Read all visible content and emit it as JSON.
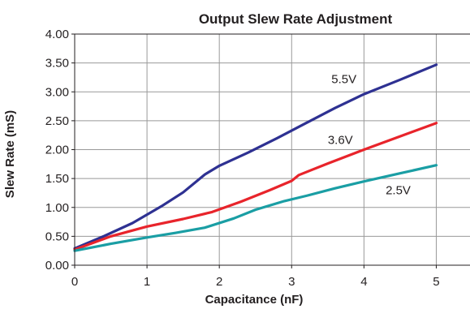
{
  "chart_data": {
    "type": "line",
    "title": "Output Slew Rate Adjustment",
    "xlabel": "Capacitance (nF)",
    "ylabel": "Slew Rate (mS)",
    "xlim": [
      0,
      5.5
    ],
    "ylim": [
      0,
      4
    ],
    "x_ticks": [
      "0",
      "1",
      "2",
      "3",
      "4",
      "5"
    ],
    "y_ticks": [
      "0.00",
      "0.50",
      "1.00",
      "1.50",
      "2.00",
      "2.50",
      "3.00",
      "3.50",
      "4.00"
    ],
    "grid": true,
    "series": [
      {
        "name": "5.5V",
        "color": "#2e3192",
        "label_at": [
          3.55,
          3.15
        ],
        "points": [
          [
            0,
            0.29
          ],
          [
            0.4,
            0.5
          ],
          [
            0.8,
            0.73
          ],
          [
            1.2,
            1.02
          ],
          [
            1.5,
            1.26
          ],
          [
            1.8,
            1.57
          ],
          [
            2.0,
            1.72
          ],
          [
            2.4,
            1.95
          ],
          [
            2.8,
            2.2
          ],
          [
            3.2,
            2.46
          ],
          [
            3.6,
            2.72
          ],
          [
            4.0,
            2.96
          ],
          [
            4.5,
            3.21
          ],
          [
            5.0,
            3.47
          ]
        ]
      },
      {
        "name": "3.6V",
        "color": "#e8242b",
        "label_at": [
          3.5,
          2.1
        ],
        "points": [
          [
            0,
            0.27
          ],
          [
            0.5,
            0.5
          ],
          [
            1.0,
            0.67
          ],
          [
            1.5,
            0.8
          ],
          [
            1.9,
            0.92
          ],
          [
            2.3,
            1.1
          ],
          [
            2.7,
            1.3
          ],
          [
            3.0,
            1.46
          ],
          [
            3.1,
            1.56
          ],
          [
            3.5,
            1.76
          ],
          [
            4.0,
            2.0
          ],
          [
            4.5,
            2.23
          ],
          [
            5.0,
            2.46
          ]
        ]
      },
      {
        "name": "2.5V",
        "color": "#1a9ea4",
        "label_at": [
          4.3,
          1.23
        ],
        "points": [
          [
            0,
            0.25
          ],
          [
            0.5,
            0.37
          ],
          [
            1.0,
            0.48
          ],
          [
            1.4,
            0.56
          ],
          [
            1.8,
            0.65
          ],
          [
            2.2,
            0.81
          ],
          [
            2.5,
            0.96
          ],
          [
            2.9,
            1.11
          ],
          [
            3.2,
            1.2
          ],
          [
            3.6,
            1.33
          ],
          [
            4.0,
            1.45
          ],
          [
            4.5,
            1.59
          ],
          [
            5.0,
            1.73
          ]
        ]
      }
    ]
  }
}
